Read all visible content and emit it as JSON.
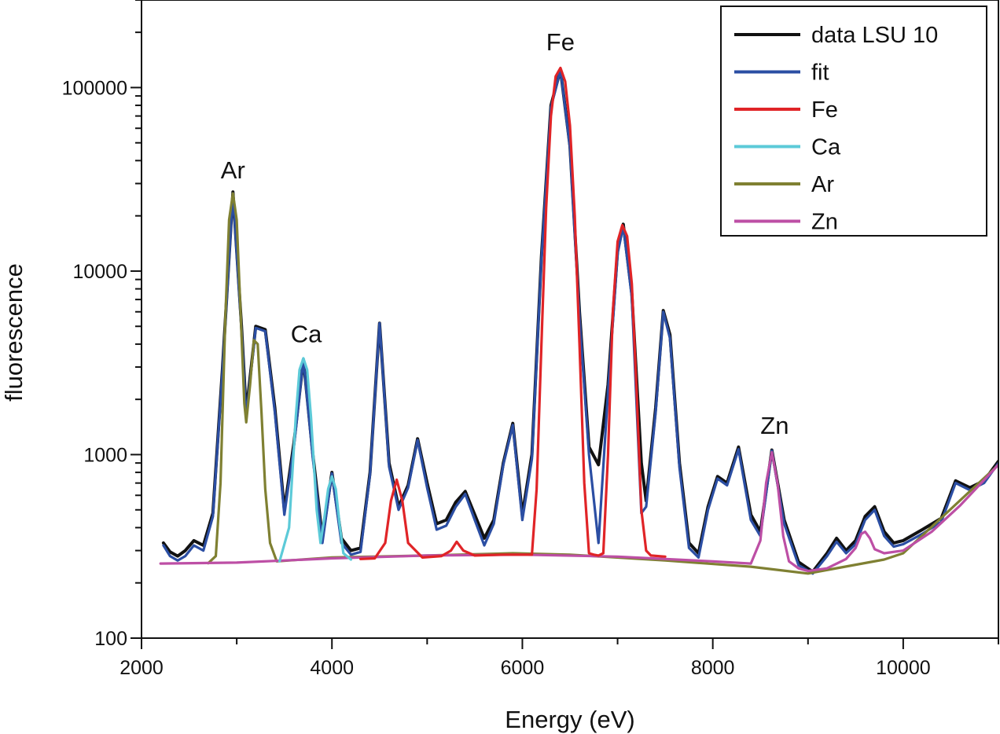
{
  "chart_data": {
    "type": "line",
    "title": "",
    "xlabel": "Energy (eV)",
    "ylabel": "fluorescence",
    "x_scale": "linear",
    "y_scale": "log",
    "xlim": [
      2000,
      11000
    ],
    "ylim": [
      100,
      300000
    ],
    "x_ticks": [
      {
        "value": 2000,
        "label": "2000"
      },
      {
        "value": 4000,
        "label": "4000"
      },
      {
        "value": 6000,
        "label": "6000"
      },
      {
        "value": 8000,
        "label": "8000"
      },
      {
        "value": 10000,
        "label": "10000"
      }
    ],
    "y_ticks": [
      {
        "value": 100,
        "label": "100"
      },
      {
        "value": 1000,
        "label": "1000"
      },
      {
        "value": 10000,
        "label": "10000"
      },
      {
        "value": 100000,
        "label": "100000"
      }
    ],
    "grid": false,
    "legend_position": "top-right",
    "annotations": [
      {
        "text": "Ar",
        "x": 2960,
        "y": 32000
      },
      {
        "text": "Ca",
        "x": 3730,
        "y": 4100
      },
      {
        "text": "Fe",
        "x": 6400,
        "y": 160000
      },
      {
        "text": "Zn",
        "x": 8650,
        "y": 1300
      }
    ],
    "series": [
      {
        "name": "data LSU 10",
        "color": "#111111",
        "x": [
          2230,
          2300,
          2380,
          2460,
          2550,
          2650,
          2750,
          2850,
          2960,
          3050,
          3100,
          3200,
          3300,
          3400,
          3500,
          3600,
          3700,
          3800,
          3900,
          4000,
          4100,
          4200,
          4300,
          4400,
          4500,
          4600,
          4700,
          4800,
          4900,
          5000,
          5100,
          5200,
          5300,
          5400,
          5500,
          5600,
          5700,
          5800,
          5900,
          6000,
          6100,
          6200,
          6300,
          6400,
          6500,
          6600,
          6700,
          6800,
          6900,
          7000,
          7060,
          7150,
          7250,
          7300,
          7400,
          7480,
          7550,
          7650,
          7750,
          7850,
          7950,
          8050,
          8150,
          8270,
          8400,
          8500,
          8620,
          8750,
          8900,
          9050,
          9200,
          9300,
          9400,
          9500,
          9600,
          9700,
          9800,
          9900,
          10000,
          10200,
          10400,
          10550,
          10700,
          10850,
          11000
        ],
        "y": [
          330,
          295,
          280,
          300,
          340,
          320,
          480,
          2900,
          27000,
          5000,
          1700,
          5000,
          4800,
          1800,
          500,
          1150,
          3300,
          1000,
          350,
          800,
          350,
          300,
          310,
          800,
          5200,
          900,
          520,
          680,
          1220,
          700,
          420,
          440,
          550,
          630,
          470,
          350,
          440,
          900,
          1480,
          470,
          1000,
          12000,
          80000,
          125000,
          48000,
          6000,
          1100,
          880,
          2400,
          13000,
          18000,
          7500,
          900,
          560,
          1800,
          6100,
          4500,
          900,
          330,
          290,
          520,
          760,
          700,
          1100,
          470,
          380,
          1060,
          440,
          260,
          230,
          290,
          350,
          300,
          340,
          460,
          520,
          380,
          330,
          340,
          390,
          450,
          720,
          660,
          720,
          920
        ]
      },
      {
        "name": "fit",
        "color": "#2b4ea3",
        "x": [
          2230,
          2300,
          2380,
          2460,
          2550,
          2650,
          2750,
          2850,
          2960,
          3050,
          3100,
          3200,
          3300,
          3400,
          3500,
          3600,
          3700,
          3800,
          3900,
          4000,
          4100,
          4200,
          4300,
          4400,
          4500,
          4600,
          4700,
          4800,
          4900,
          5000,
          5100,
          5200,
          5300,
          5400,
          5500,
          5600,
          5700,
          5800,
          5900,
          6000,
          6100,
          6200,
          6300,
          6400,
          6500,
          6600,
          6700,
          6800,
          6900,
          7000,
          7060,
          7150,
          7250,
          7300,
          7400,
          7480,
          7550,
          7650,
          7750,
          7850,
          7950,
          8050,
          8150,
          8270,
          8400,
          8500,
          8620,
          8750,
          8900,
          9050,
          9200,
          9300,
          9400,
          9500,
          9600,
          9700,
          9800,
          9900,
          10000,
          10200,
          10400,
          10550,
          10700,
          10850,
          11000
        ],
        "y": [
          320,
          280,
          265,
          280,
          320,
          300,
          460,
          2800,
          26500,
          4800,
          1600,
          4900,
          4700,
          1700,
          470,
          1100,
          3300,
          950,
          330,
          790,
          330,
          285,
          295,
          780,
          5200,
          860,
          500,
          660,
          1200,
          660,
          390,
          410,
          520,
          610,
          440,
          320,
          420,
          880,
          1450,
          440,
          950,
          11500,
          78000,
          125000,
          47000,
          5600,
          1000,
          330,
          2200,
          12500,
          17500,
          7200,
          480,
          520,
          1700,
          6000,
          4300,
          850,
          310,
          275,
          500,
          740,
          680,
          1070,
          440,
          360,
          1050,
          420,
          250,
          225,
          280,
          335,
          290,
          325,
          440,
          500,
          360,
          315,
          325,
          370,
          430,
          700,
          640,
          700,
          900
        ]
      },
      {
        "name": "Fe",
        "color": "#e02427",
        "x": [
          4300,
          4450,
          4560,
          4620,
          4680,
          4740,
          4800,
          4950,
          5150,
          5250,
          5310,
          5380,
          5500,
          5800,
          6100,
          6150,
          6200,
          6250,
          6300,
          6350,
          6400,
          6450,
          6500,
          6550,
          6600,
          6650,
          6700,
          6750,
          6800,
          6850,
          6900,
          6950,
          7000,
          7050,
          7100,
          7150,
          7200,
          7250,
          7300,
          7350,
          7500
        ],
        "y": [
          270,
          272,
          330,
          560,
          730,
          560,
          330,
          275,
          280,
          300,
          335,
          300,
          282,
          285,
          285,
          650,
          4000,
          22000,
          70000,
          115000,
          128000,
          108000,
          62000,
          20000,
          4000,
          700,
          290,
          285,
          282,
          290,
          1000,
          6000,
          14500,
          17800,
          15500,
          8500,
          2200,
          500,
          300,
          282,
          278
        ]
      },
      {
        "name": "Ca",
        "color": "#5ccad8",
        "x": [
          3450,
          3550,
          3620,
          3660,
          3700,
          3740,
          3780,
          3840,
          3880,
          3920,
          3960,
          4000,
          4040,
          4080,
          4120,
          4200
        ],
        "y": [
          262,
          400,
          1600,
          2900,
          3350,
          2900,
          1600,
          500,
          330,
          450,
          650,
          760,
          650,
          420,
          290,
          268
        ]
      },
      {
        "name": "Ar",
        "color": "#7f8032",
        "x": [
          2700,
          2780,
          2830,
          2880,
          2920,
          2960,
          3000,
          3040,
          3080,
          3100,
          3140,
          3180,
          3220,
          3260,
          3300,
          3350,
          3420,
          4000,
          5000,
          5900,
          6500,
          7500,
          8400,
          9000,
          9100,
          9800,
          10000,
          11000
        ],
        "y": [
          256,
          280,
          700,
          5500,
          19000,
          26500,
          19000,
          6000,
          1900,
          1500,
          2400,
          4200,
          4000,
          1700,
          650,
          330,
          262,
          275,
          282,
          290,
          285,
          265,
          245,
          225,
          230,
          268,
          290,
          880
        ]
      },
      {
        "name": "Zn",
        "color": "#bd4fa5",
        "x": [
          2200,
          3000,
          4000,
          5000,
          6000,
          7000,
          8000,
          8400,
          8500,
          8560,
          8620,
          8680,
          8740,
          8800,
          8900,
          9000,
          9200,
          9400,
          9500,
          9560,
          9600,
          9650,
          9700,
          9800,
          10000,
          10300,
          10600,
          11000
        ],
        "y": [
          255,
          258,
          272,
          282,
          285,
          278,
          262,
          255,
          340,
          700,
          1030,
          700,
          360,
          262,
          240,
          232,
          240,
          270,
          310,
          370,
          380,
          350,
          305,
          290,
          300,
          380,
          530,
          880
        ]
      }
    ]
  }
}
